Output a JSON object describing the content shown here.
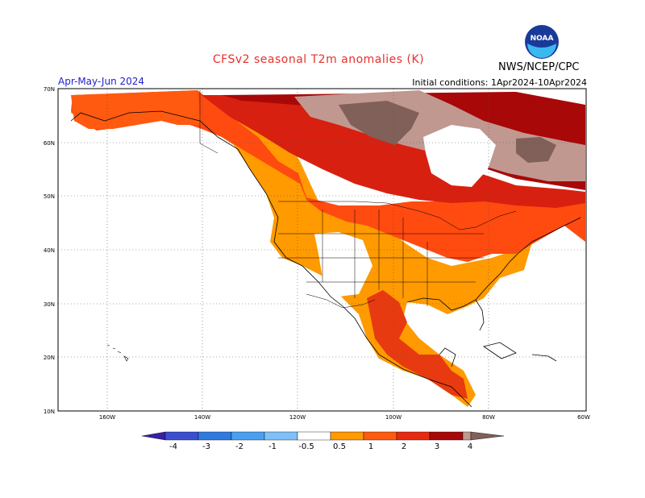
{
  "header": {
    "title": "CFSv2 seasonal T2m anomalies (K)",
    "period": "Apr-May-Jun 2024",
    "initial_conditions": "Initial conditions: 1Apr2024-10Apr2024",
    "organization": "NWS/NCEP/CPC",
    "logo_text": "NOAA"
  },
  "map": {
    "lat_labels": [
      "70N",
      "60N",
      "50N",
      "40N",
      "30N",
      "20N",
      "10N"
    ],
    "lon_labels": [
      "160W",
      "140W",
      "120W",
      "100W",
      "80W",
      "60W"
    ]
  },
  "colorbar": {
    "labels": [
      "-4",
      "-3",
      "-2",
      "-1",
      "-0.5",
      "0.5",
      "1",
      "2",
      "3",
      "4"
    ],
    "colors": [
      "#3a1fa8",
      "#3a4fd0",
      "#2f7ae0",
      "#4aa0f0",
      "#80c0f8",
      "#ffffff",
      "#ff9a00",
      "#ff5a10",
      "#e82a10",
      "#a80808",
      "#c09890",
      "#806058"
    ]
  },
  "palette": {
    "anom_05_1": "#ff9a00",
    "anom_1_2": "#ff5a10",
    "anom_2_3": "#e82a10",
    "anom_3_4": "#a80808",
    "anom_4_5": "#c09890",
    "anom_gt5": "#806058"
  }
}
